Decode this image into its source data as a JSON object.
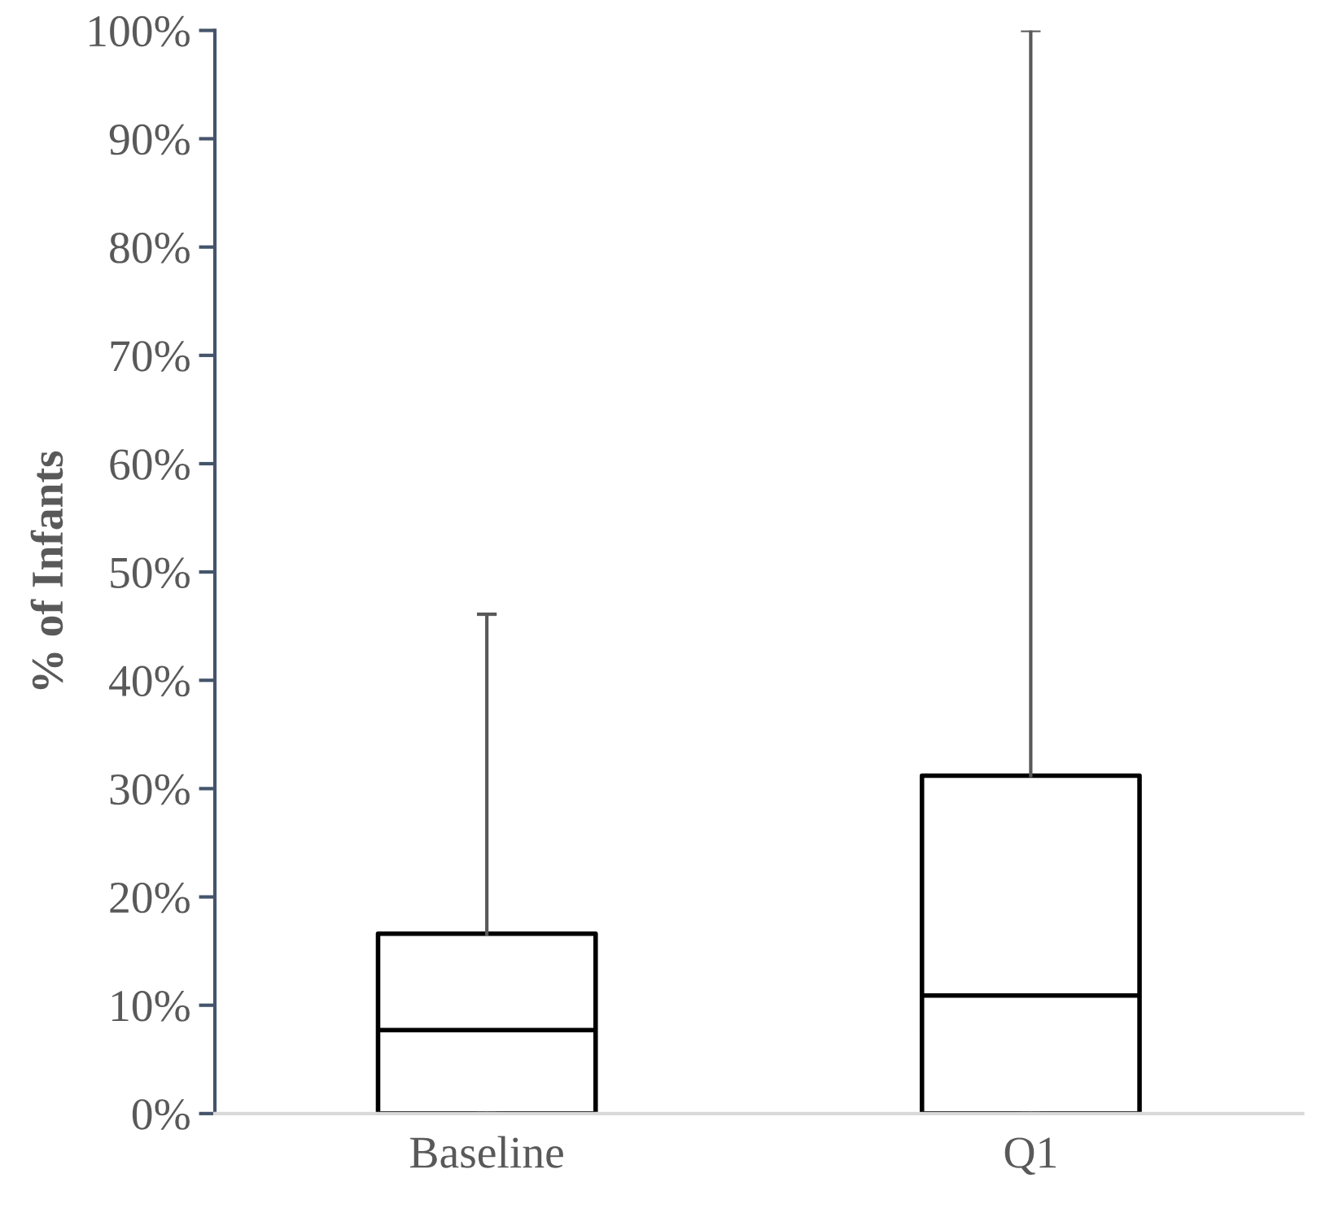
{
  "chart_data": {
    "type": "box",
    "ylabel": "% of Infants",
    "categories": [
      "Baseline",
      "Q1"
    ],
    "boxes": [
      {
        "low": 0,
        "q1": 0,
        "median": 7.7,
        "q3": 16.6,
        "high": 46.1
      },
      {
        "low": 0,
        "q1": 0,
        "median": 10.9,
        "q3": 31.2,
        "high": 100
      }
    ],
    "ylim": [
      0,
      100
    ],
    "yticks": [
      {
        "value": 0,
        "label": "0%"
      },
      {
        "value": 10,
        "label": "10%"
      },
      {
        "value": 20,
        "label": "20%"
      },
      {
        "value": 30,
        "label": "30%"
      },
      {
        "value": 40,
        "label": "40%"
      },
      {
        "value": 50,
        "label": "50%"
      },
      {
        "value": 60,
        "label": "60%"
      },
      {
        "value": 70,
        "label": "70%"
      },
      {
        "value": 80,
        "label": "80%"
      },
      {
        "value": 90,
        "label": "90%"
      },
      {
        "value": 100,
        "label": "100%"
      }
    ],
    "grid": false
  }
}
